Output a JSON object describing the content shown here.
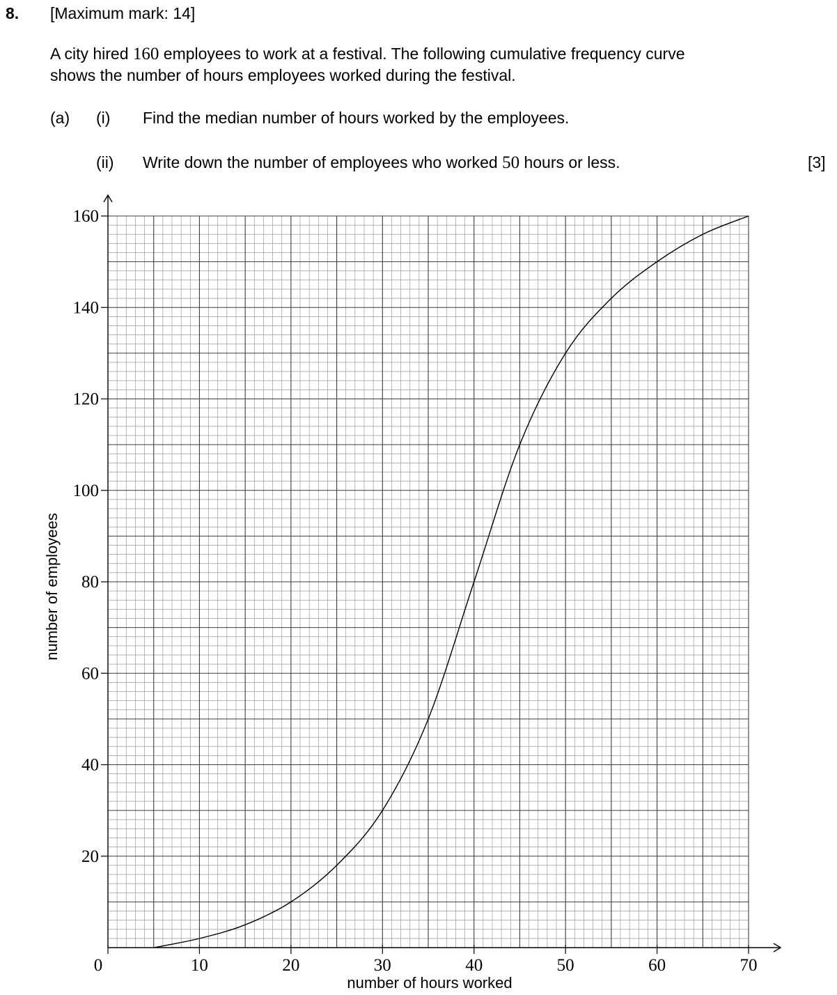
{
  "question": {
    "number": "8.",
    "max_mark": "[Maximum mark:  14]",
    "intro_pre": "A city hired ",
    "intro_num": "160",
    "intro_post": " employees to work at a festival.  The following cumulative frequency curve",
    "intro_line2": "shows the number of hours employees worked during the festival.",
    "part_a_label": "(a)",
    "sub_i_label": "(i)",
    "sub_i_text": "Find the median number of hours worked by the employees.",
    "sub_ii_label": "(ii)",
    "sub_ii_pre": "Write down the number of employees who worked ",
    "sub_ii_num": "50",
    "sub_ii_post": " hours or less.",
    "marks": "[3]"
  },
  "chart_data": {
    "type": "line",
    "title": "",
    "xlabel": "number of hours worked",
    "ylabel": "number of employees",
    "xlim": [
      0,
      70
    ],
    "ylim": [
      0,
      160
    ],
    "x_ticks": [
      "0",
      "10",
      "20",
      "30",
      "40",
      "50",
      "60",
      "70"
    ],
    "x_tick_values": [
      0,
      10,
      20,
      30,
      40,
      50,
      60,
      70
    ],
    "y_ticks": [
      "20",
      "40",
      "60",
      "80",
      "100",
      "120",
      "140",
      "160"
    ],
    "y_tick_values": [
      20,
      40,
      60,
      80,
      100,
      120,
      140,
      160
    ],
    "grid": true,
    "grid_major_x": 5,
    "grid_minor_x": 1,
    "grid_major_y": 10,
    "grid_minor_y": 2,
    "series": [
      {
        "x": [
          5,
          10,
          15,
          20,
          25,
          30,
          35,
          40,
          45,
          50,
          55,
          60,
          65,
          70
        ],
        "y": [
          0,
          2,
          5,
          10,
          18,
          30,
          50,
          80,
          110,
          130,
          142,
          150,
          156,
          160
        ]
      }
    ]
  }
}
